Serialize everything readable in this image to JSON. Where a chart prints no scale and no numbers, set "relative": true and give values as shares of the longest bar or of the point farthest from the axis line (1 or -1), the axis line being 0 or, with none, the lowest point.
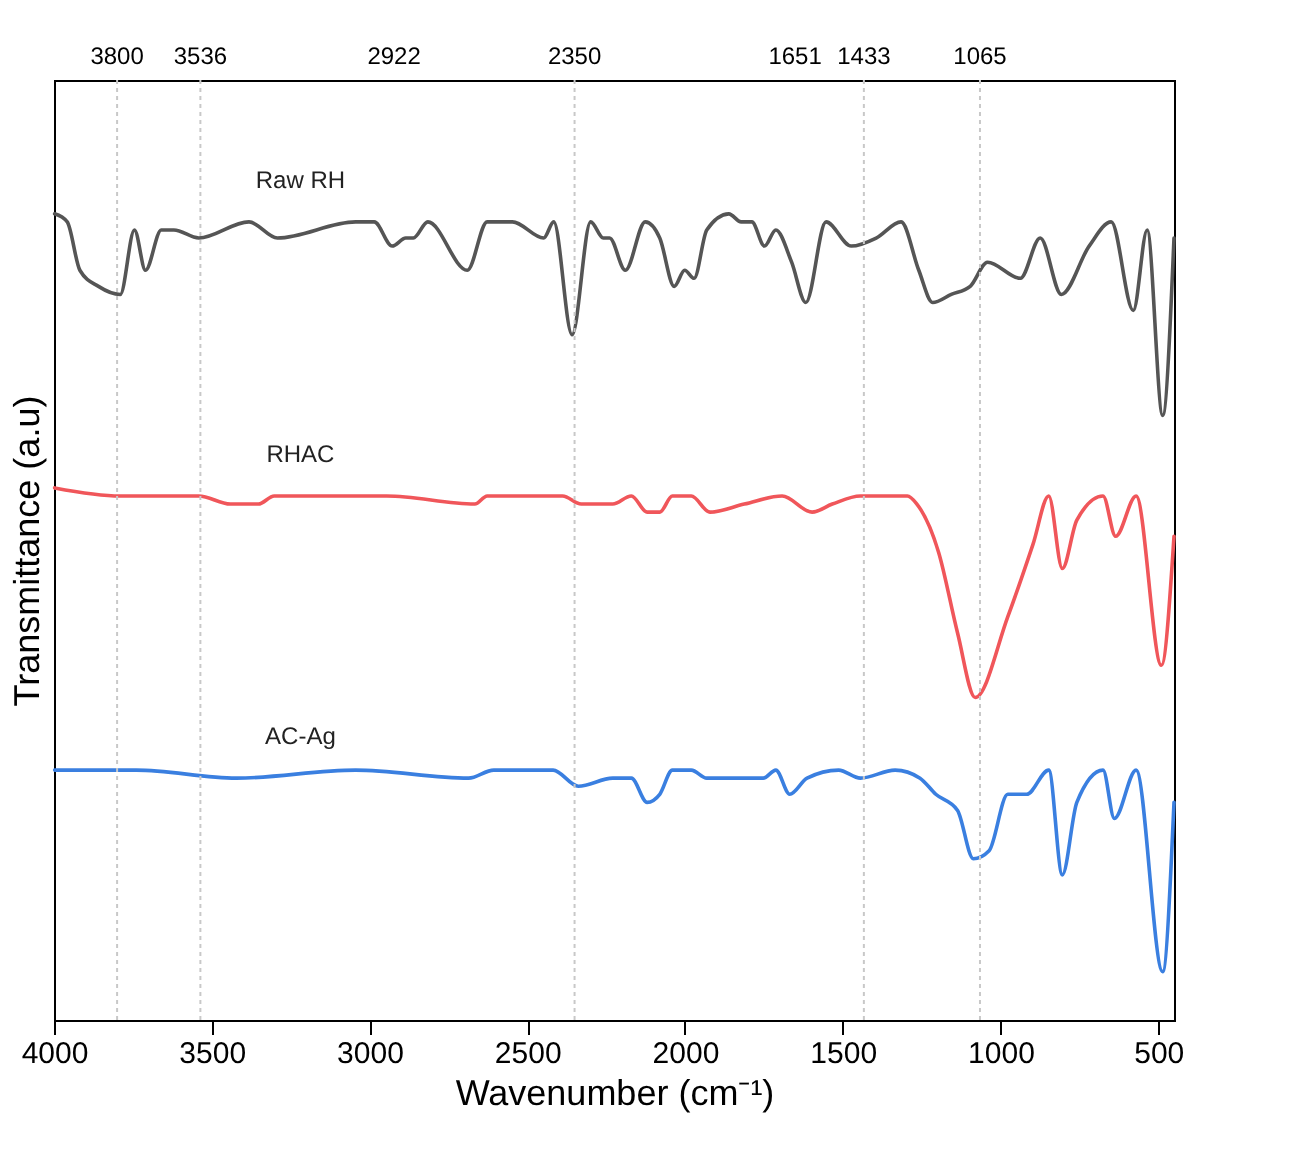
{
  "chart_data": {
    "type": "line",
    "relative": true,
    "xlabel": "Wavenumber (cm⁻¹)",
    "ylabel": "Transmittance (a.u)",
    "xlim": [
      4000,
      450
    ],
    "xticks": [
      4000,
      3500,
      3000,
      2500,
      2000,
      1500,
      1000,
      500
    ],
    "x2lim": [
      4000,
      450
    ],
    "x2ticks": [
      3800,
      3536,
      2922,
      2350,
      1651,
      1433,
      1065
    ],
    "tick_labels": "x",
    "grid": false,
    "legend": false,
    "line_style": "solid",
    "marker": "none",
    "ref_lines": [
      {
        "axis": "x",
        "value": 3800,
        "color": "#c8c8c8",
        "line_style": "dotted"
      },
      {
        "axis": "x",
        "value": 3536,
        "color": "#c8c8c8",
        "line_style": "dotted"
      },
      {
        "axis": "x",
        "value": 2350,
        "color": "#c8c8c8",
        "line_style": "dotted"
      },
      {
        "axis": "x",
        "value": 1433,
        "color": "#c8c8c8",
        "line_style": "dotted"
      },
      {
        "axis": "x",
        "value": 1065,
        "color": "#c8c8c8",
        "line_style": "dotted"
      }
    ],
    "series": [
      {
        "name": "Raw RH",
        "color": "#555555",
        "x": [
          3998,
          3958,
          3918,
          3859,
          3790,
          3745,
          3710,
          3660,
          3620,
          3541,
          3382,
          3292,
          3044,
          2985,
          2928,
          2885,
          2861,
          2815,
          2690,
          2627,
          2547,
          2448,
          2416,
          2358,
          2299,
          2259,
          2239,
          2189,
          2126,
          2080,
          2034,
          2001,
          1971,
          1931,
          1861,
          1822,
          1788,
          1748,
          1712,
          1662,
          1617,
          1553,
          1473,
          1394,
          1315,
          1259,
          1215,
          1156,
          1096,
          1041,
          937,
          874,
          807,
          719,
          649,
          579,
          535,
          486,
          450
        ],
        "values": [
          1.0,
          0.99,
          0.93,
          0.91,
          0.9,
          0.98,
          0.93,
          0.98,
          0.98,
          0.97,
          0.99,
          0.97,
          0.99,
          0.99,
          0.96,
          0.97,
          0.97,
          0.99,
          0.93,
          0.99,
          0.99,
          0.97,
          0.99,
          0.85,
          0.99,
          0.97,
          0.97,
          0.93,
          0.99,
          0.97,
          0.91,
          0.93,
          0.92,
          0.98,
          1.0,
          0.99,
          0.99,
          0.96,
          0.98,
          0.94,
          0.89,
          0.99,
          0.96,
          0.97,
          0.99,
          0.93,
          0.89,
          0.9,
          0.91,
          0.94,
          0.92,
          0.97,
          0.9,
          0.96,
          0.99,
          0.88,
          0.98,
          0.75,
          0.97
        ]
      },
      {
        "name": "RHAC",
        "color": "#f0565a",
        "x": [
          3998,
          3790,
          3760,
          3541,
          3441,
          3352,
          3302,
          2945,
          2666,
          2627,
          2388,
          2329,
          2229,
          2170,
          2120,
          2080,
          2040,
          1980,
          1921,
          1812,
          1692,
          1597,
          1533,
          1444,
          1295,
          1265,
          1196,
          1136,
          1080,
          977,
          897,
          847,
          804,
          758,
          675,
          635,
          570,
          490,
          450
        ],
        "values": [
          0.66,
          0.65,
          0.65,
          0.65,
          0.64,
          0.64,
          0.65,
          0.65,
          0.64,
          0.65,
          0.65,
          0.64,
          0.64,
          0.65,
          0.63,
          0.63,
          0.65,
          0.65,
          0.63,
          0.64,
          0.65,
          0.63,
          0.64,
          0.65,
          0.65,
          0.64,
          0.58,
          0.48,
          0.4,
          0.5,
          0.59,
          0.65,
          0.56,
          0.62,
          0.65,
          0.6,
          0.65,
          0.44,
          0.6
        ]
      },
      {
        "name": "AC-Ag",
        "color": "#3a7fe0",
        "x": [
          3998,
          3790,
          3739,
          3422,
          3044,
          2686,
          2606,
          2418,
          2338,
          2229,
          2170,
          2120,
          2080,
          2040,
          1980,
          1931,
          1752,
          1712,
          1668,
          1613,
          1513,
          1444,
          1334,
          1255,
          1205,
          1136,
          1086,
          1036,
          977,
          917,
          847,
          804,
          758,
          675,
          639,
          570,
          486,
          450
        ],
        "values": [
          0.31,
          0.31,
          0.31,
          0.3,
          0.31,
          0.3,
          0.31,
          0.31,
          0.29,
          0.3,
          0.3,
          0.27,
          0.28,
          0.31,
          0.31,
          0.3,
          0.3,
          0.31,
          0.28,
          0.3,
          0.31,
          0.3,
          0.31,
          0.3,
          0.28,
          0.26,
          0.2,
          0.21,
          0.28,
          0.28,
          0.31,
          0.18,
          0.27,
          0.31,
          0.25,
          0.31,
          0.06,
          0.27
        ]
      }
    ]
  }
}
